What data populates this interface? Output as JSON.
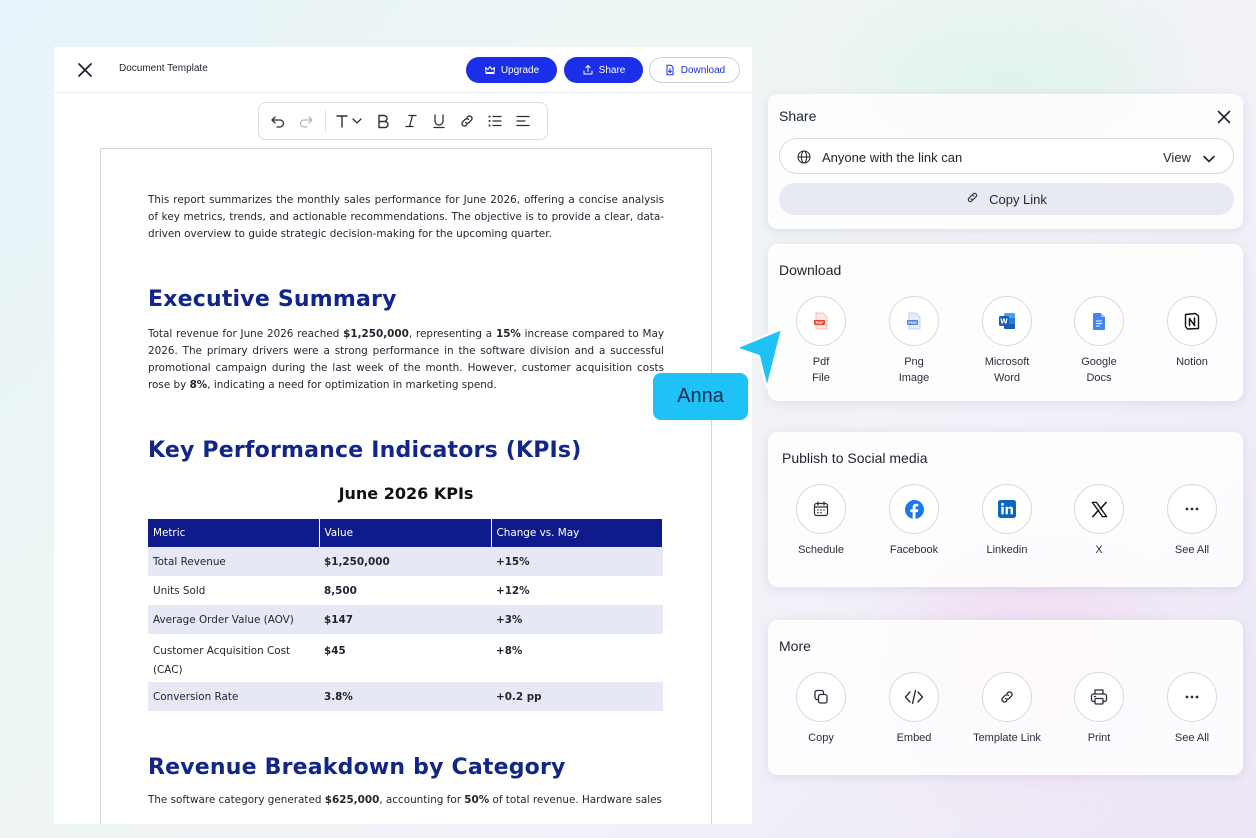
{
  "editor": {
    "doc_title": "Document Template",
    "upgrade_label": "Upgrade",
    "share_label": "Share",
    "download_label": "Download"
  },
  "document": {
    "intro": "This report summarizes the monthly sales performance for June 2026, offering a concise analysis of key metrics, trends, and actionable recommendations. The objective is to provide a clear, data-driven overview to guide strategic decision-making for the upcoming quarter.",
    "h_exec": "Executive Summary",
    "exec_p1": "Total revenue for June 2026 reached ",
    "exec_b1": "$1,250,000",
    "exec_p2": ", representing a ",
    "exec_b2": "15%",
    "exec_p3": " increase compared to May 2026. The primary drivers were a strong performance in the software division and a successful promotional campaign during the last week of the month. However, customer acquisition costs rose by ",
    "exec_b3": "8%",
    "exec_p4": ", indicating a need for optimization in marketing spend.",
    "h_kpi": "Key Performance Indicators (KPIs)",
    "kpi_table_title": "June 2026 KPIs",
    "kpi_headers": [
      "Metric",
      "Value",
      "Change vs. May"
    ],
    "kpi_rows": [
      [
        "Total Revenue",
        "$1,250,000",
        "+15%"
      ],
      [
        "Units Sold",
        "8,500",
        "+12%"
      ],
      [
        "Average Order Value (AOV)",
        "$147",
        "+3%"
      ],
      [
        "Customer Acquisition Cost (CAC)",
        "$45",
        "+8%"
      ],
      [
        "Conversion Rate",
        "3.8%",
        "+0.2 pp"
      ]
    ],
    "h_rev": "Revenue Breakdown by Category",
    "rev_p1": "The software category generated ",
    "rev_b1": "$625,000",
    "rev_p2": ", accounting for ",
    "rev_b2": "50%",
    "rev_p3": " of total revenue. Hardware sales"
  },
  "share": {
    "title": "Share",
    "access_text": "Anyone with the link can",
    "permission": "View",
    "copy_link": "Copy Link"
  },
  "download": {
    "title": "Download",
    "options": [
      {
        "l1": "Pdf",
        "l2": "File"
      },
      {
        "l1": "Png",
        "l2": "Image"
      },
      {
        "l1": "Microsoft",
        "l2": "Word"
      },
      {
        "l1": "Google",
        "l2": "Docs"
      },
      {
        "l1": "Notion",
        "l2": ""
      }
    ]
  },
  "social": {
    "title": "Publish to Social media",
    "options": [
      "Schedule",
      "Facebook",
      "Linkedin",
      "X",
      "See All"
    ]
  },
  "more": {
    "title": "More",
    "options": [
      "Copy",
      "Embed",
      "Template Link",
      "Print",
      "See All"
    ]
  },
  "collaborator": {
    "name": "Anna"
  },
  "colors": {
    "accent": "#1b2ee8",
    "heading": "#14258a",
    "table_header": "#0f1a8c",
    "cursor": "#1fc2f7"
  }
}
